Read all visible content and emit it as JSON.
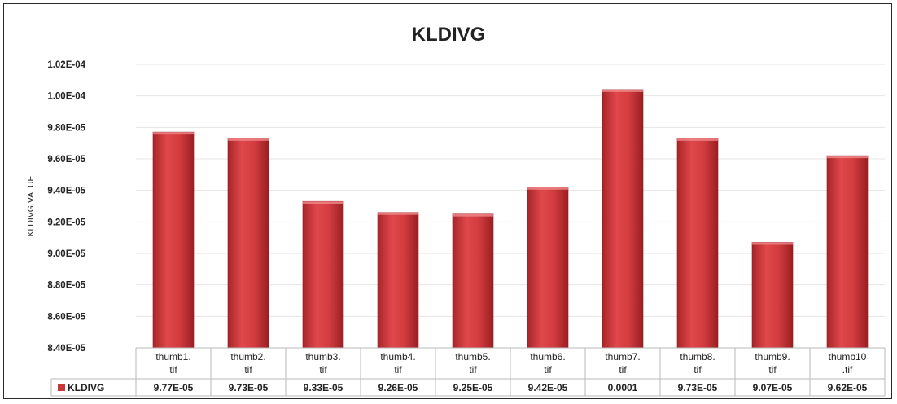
{
  "chart_data": {
    "type": "bar",
    "title": "KLDIVG",
    "ylabel": "KLDIVG VALUE",
    "xlabel": "",
    "ylim": [
      8.4e-05,
      0.000102
    ],
    "ytick_values": [
      8.4e-05,
      8.6e-05,
      8.8e-05,
      9e-05,
      9.2e-05,
      9.4e-05,
      9.6e-05,
      9.8e-05,
      0.0001,
      0.000102
    ],
    "ytick_labels": [
      "8.40E-05",
      "8.60E-05",
      "8.80E-05",
      "9.00E-05",
      "9.20E-05",
      "9.40E-05",
      "9.60E-05",
      "9.80E-05",
      "1.00E-04",
      "1.02E-04"
    ],
    "grid": true,
    "categories": [
      [
        "thumb1.",
        "tif"
      ],
      [
        "thumb2.",
        "tif"
      ],
      [
        "thumb3.",
        "tif"
      ],
      [
        "thumb4.",
        "tif"
      ],
      [
        "thumb5.",
        "tif"
      ],
      [
        "thumb6.",
        "tif"
      ],
      [
        "thumb7.",
        "tif"
      ],
      [
        "thumb8.",
        "tif"
      ],
      [
        "thumb9.",
        "tif"
      ],
      [
        "thumb10",
        ".tif"
      ]
    ],
    "series": [
      {
        "name": "KLDIVG",
        "values": [
          9.77e-05,
          9.73e-05,
          9.33e-05,
          9.26e-05,
          9.25e-05,
          9.42e-05,
          0.0001004,
          9.73e-05,
          9.07e-05,
          9.62e-05
        ],
        "value_labels": [
          "9.77E-05",
          "9.73E-05",
          "9.33E-05",
          "9.26E-05",
          "9.25E-05",
          "9.42E-05",
          "0.0001",
          "9.73E-05",
          "9.07E-05",
          "9.62E-05"
        ]
      }
    ],
    "legend_placement": "data-table",
    "bar_color": "#c8373a"
  }
}
